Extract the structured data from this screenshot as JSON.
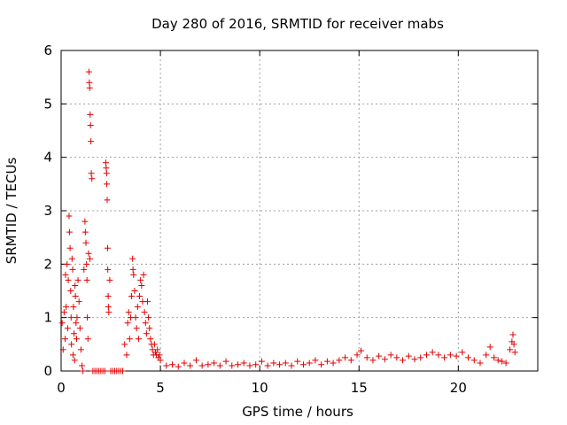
{
  "chart_data": {
    "type": "scatter",
    "title": "Day 280 of 2016, SRMTID for receiver mabs",
    "xlabel": "GPS time / hours",
    "ylabel": "SRMTID / TECUs",
    "xlim": [
      0,
      24
    ],
    "ylim": [
      0,
      6
    ],
    "xticks": [
      0,
      5,
      10,
      15,
      20
    ],
    "yticks": [
      0,
      1,
      2,
      3,
      4,
      5,
      6
    ],
    "grid": true,
    "marker": "+",
    "color": "#e00000",
    "series": [
      {
        "name": "SRMTID",
        "points": [
          [
            0.05,
            0.9
          ],
          [
            0.1,
            0.4
          ],
          [
            0.15,
            1.1
          ],
          [
            0.2,
            0.6
          ],
          [
            0.22,
            1.8
          ],
          [
            0.25,
            1.2
          ],
          [
            0.3,
            2.0
          ],
          [
            0.33,
            0.8
          ],
          [
            0.36,
            1.7
          ],
          [
            0.4,
            2.9
          ],
          [
            0.42,
            2.6
          ],
          [
            0.45,
            2.3
          ],
          [
            0.48,
            1.5
          ],
          [
            0.5,
            1.0
          ],
          [
            0.52,
            0.5
          ],
          [
            0.55,
            2.1
          ],
          [
            0.58,
            1.9
          ],
          [
            0.6,
            0.3
          ],
          [
            0.62,
            1.2
          ],
          [
            0.65,
            0.7
          ],
          [
            0.68,
            0.2
          ],
          [
            0.7,
            1.6
          ],
          [
            0.72,
            1.4
          ],
          [
            0.75,
            0.9
          ],
          [
            0.78,
            0.6
          ],
          [
            0.8,
            1.0
          ],
          [
            0.85,
            1.7
          ],
          [
            0.9,
            1.3
          ],
          [
            0.95,
            0.8
          ],
          [
            1.0,
            0.4
          ],
          [
            1.05,
            0.1
          ],
          [
            1.1,
            0.0
          ],
          [
            1.15,
            1.9
          ],
          [
            1.2,
            2.8
          ],
          [
            1.22,
            2.6
          ],
          [
            1.25,
            2.4
          ],
          [
            1.28,
            2.0
          ],
          [
            1.3,
            1.7
          ],
          [
            1.32,
            1.0
          ],
          [
            1.35,
            0.6
          ],
          [
            1.38,
            2.2
          ],
          [
            1.4,
            5.6
          ],
          [
            1.42,
            5.4
          ],
          [
            1.44,
            5.3
          ],
          [
            1.46,
            4.8
          ],
          [
            1.48,
            4.6
          ],
          [
            1.5,
            4.3
          ],
          [
            1.52,
            3.7
          ],
          [
            1.55,
            3.6
          ],
          [
            1.45,
            2.1
          ],
          [
            1.6,
            0.0
          ],
          [
            1.7,
            0.0
          ],
          [
            1.8,
            0.0
          ],
          [
            1.9,
            0.0
          ],
          [
            2.0,
            0.0
          ],
          [
            2.1,
            0.0
          ],
          [
            2.2,
            0.0
          ],
          [
            2.25,
            3.9
          ],
          [
            2.27,
            3.8
          ],
          [
            2.29,
            3.7
          ],
          [
            2.3,
            3.5
          ],
          [
            2.32,
            3.2
          ],
          [
            2.34,
            2.3
          ],
          [
            2.35,
            1.9
          ],
          [
            2.37,
            1.4
          ],
          [
            2.38,
            1.2
          ],
          [
            2.4,
            1.1
          ],
          [
            2.45,
            1.7
          ],
          [
            2.5,
            0.0
          ],
          [
            2.6,
            0.0
          ],
          [
            2.7,
            0.0
          ],
          [
            2.8,
            0.0
          ],
          [
            2.9,
            0.0
          ],
          [
            3.0,
            0.0
          ],
          [
            3.1,
            0.0
          ],
          [
            3.2,
            0.5
          ],
          [
            3.3,
            0.3
          ],
          [
            3.35,
            0.9
          ],
          [
            3.4,
            1.1
          ],
          [
            3.45,
            0.6
          ],
          [
            3.5,
            1.0
          ],
          [
            3.55,
            1.4
          ],
          [
            3.6,
            2.1
          ],
          [
            3.62,
            1.9
          ],
          [
            3.65,
            1.8
          ],
          [
            3.7,
            1.5
          ],
          [
            3.75,
            1.0
          ],
          [
            3.8,
            0.8
          ],
          [
            3.85,
            1.2
          ],
          [
            3.9,
            0.6
          ],
          [
            3.95,
            1.4
          ],
          [
            4.0,
            1.7
          ],
          [
            4.05,
            1.6
          ],
          [
            4.1,
            1.3
          ],
          [
            4.15,
            1.8
          ],
          [
            4.2,
            1.1
          ],
          [
            4.25,
            0.9
          ],
          [
            4.3,
            0.7
          ],
          [
            4.35,
            1.3
          ],
          [
            4.4,
            1.0
          ],
          [
            4.45,
            0.8
          ],
          [
            4.5,
            0.6
          ],
          [
            4.55,
            0.5
          ],
          [
            4.6,
            0.4
          ],
          [
            4.65,
            0.3
          ],
          [
            4.7,
            0.5
          ],
          [
            4.75,
            0.35
          ],
          [
            4.8,
            0.3
          ],
          [
            4.85,
            0.4
          ],
          [
            4.9,
            0.25
          ],
          [
            4.95,
            0.3
          ],
          [
            5.0,
            0.2
          ],
          [
            5.3,
            0.1
          ],
          [
            5.6,
            0.12
          ],
          [
            5.9,
            0.08
          ],
          [
            6.2,
            0.15
          ],
          [
            6.5,
            0.1
          ],
          [
            6.8,
            0.2
          ],
          [
            7.1,
            0.1
          ],
          [
            7.4,
            0.12
          ],
          [
            7.7,
            0.15
          ],
          [
            8.0,
            0.1
          ],
          [
            8.3,
            0.18
          ],
          [
            8.6,
            0.1
          ],
          [
            8.9,
            0.12
          ],
          [
            9.2,
            0.15
          ],
          [
            9.5,
            0.1
          ],
          [
            9.8,
            0.12
          ],
          [
            10.1,
            0.18
          ],
          [
            10.4,
            0.1
          ],
          [
            10.7,
            0.15
          ],
          [
            11.0,
            0.12
          ],
          [
            11.3,
            0.15
          ],
          [
            11.6,
            0.1
          ],
          [
            11.9,
            0.18
          ],
          [
            12.2,
            0.12
          ],
          [
            12.5,
            0.15
          ],
          [
            12.8,
            0.2
          ],
          [
            13.1,
            0.12
          ],
          [
            13.4,
            0.18
          ],
          [
            13.7,
            0.15
          ],
          [
            14.0,
            0.2
          ],
          [
            14.3,
            0.25
          ],
          [
            14.6,
            0.2
          ],
          [
            14.9,
            0.3
          ],
          [
            15.1,
            0.38
          ],
          [
            15.4,
            0.25
          ],
          [
            15.7,
            0.2
          ],
          [
            16.0,
            0.28
          ],
          [
            16.3,
            0.22
          ],
          [
            16.6,
            0.3
          ],
          [
            16.9,
            0.25
          ],
          [
            17.2,
            0.2
          ],
          [
            17.5,
            0.28
          ],
          [
            17.8,
            0.22
          ],
          [
            18.1,
            0.25
          ],
          [
            18.4,
            0.3
          ],
          [
            18.7,
            0.35
          ],
          [
            19.0,
            0.3
          ],
          [
            19.3,
            0.25
          ],
          [
            19.6,
            0.3
          ],
          [
            19.9,
            0.28
          ],
          [
            20.2,
            0.35
          ],
          [
            20.5,
            0.25
          ],
          [
            20.8,
            0.2
          ],
          [
            21.1,
            0.15
          ],
          [
            21.4,
            0.3
          ],
          [
            21.6,
            0.45
          ],
          [
            21.8,
            0.25
          ],
          [
            22.0,
            0.2
          ],
          [
            22.2,
            0.18
          ],
          [
            22.4,
            0.15
          ],
          [
            22.6,
            0.4
          ],
          [
            22.7,
            0.55
          ],
          [
            22.75,
            0.68
          ],
          [
            22.8,
            0.5
          ],
          [
            22.85,
            0.35
          ]
        ]
      }
    ]
  }
}
